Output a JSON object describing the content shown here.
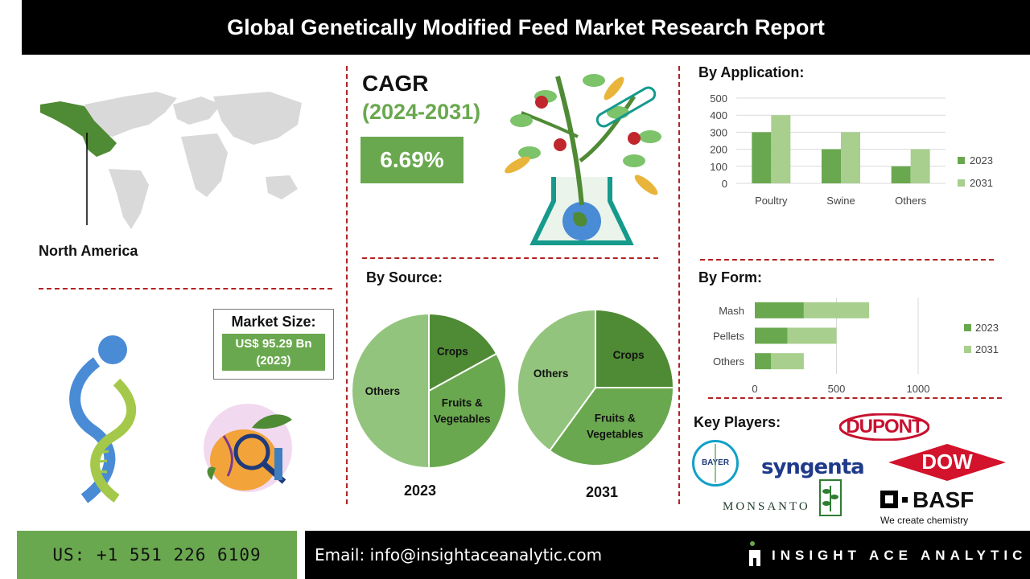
{
  "header": {
    "title": "Global Genetically Modified Feed Market Research Report"
  },
  "region": {
    "label": "North America"
  },
  "cagr": {
    "title": "CAGR",
    "years": "(2024-2031)",
    "value": "6.69%"
  },
  "market_size": {
    "title": "Market Size:",
    "value_line1": "US$ 95.29 Bn",
    "value_line2": "(2023)"
  },
  "sections": {
    "application": "By Application:",
    "source": "By Source:",
    "form": "By Form:",
    "key_players": "Key Players:"
  },
  "colors": {
    "series_2023": "#6aa84f",
    "series_2031": "#a8cf8e",
    "dark_green": "#4f8a35",
    "mid_green": "#6aa84f",
    "light_green": "#93c47d",
    "accent_red": "#b22222"
  },
  "chart_data": [
    {
      "id": "application",
      "type": "bar",
      "categories": [
        "Poultry",
        "Swine",
        "Others"
      ],
      "series": [
        {
          "name": "2023",
          "values": [
            300,
            200,
            100
          ]
        },
        {
          "name": "2031",
          "values": [
            400,
            300,
            200
          ]
        }
      ],
      "ylim": [
        0,
        500
      ],
      "yticks": [
        "0",
        "100",
        "200",
        "300",
        "400",
        "500"
      ],
      "grid": true,
      "legend": "right"
    },
    {
      "id": "source_2023",
      "type": "pie",
      "title": "2023",
      "labels": [
        "Crops",
        "Fruits & Vegetables",
        "Others"
      ],
      "label_lines": [
        [
          "Crops"
        ],
        [
          "Fruits &",
          "Vegetables"
        ],
        [
          "Others"
        ]
      ],
      "values": [
        17,
        33,
        50
      ]
    },
    {
      "id": "source_2031",
      "type": "pie",
      "title": "2031",
      "labels": [
        "Crops",
        "Fruits & Vegetables",
        "Others"
      ],
      "label_lines": [
        [
          "Crops"
        ],
        [
          "Fruits &",
          "Vegetables"
        ],
        [
          "Others"
        ]
      ],
      "values": [
        25,
        35,
        40
      ]
    },
    {
      "id": "form",
      "type": "bar",
      "orientation": "horizontal",
      "stacked": true,
      "categories": [
        "Mash",
        "Pellets",
        "Others"
      ],
      "series": [
        {
          "name": "2023",
          "values": [
            300,
            200,
            100
          ]
        },
        {
          "name": "2031",
          "values": [
            400,
            300,
            200
          ]
        }
      ],
      "xlim": [
        0,
        1000
      ],
      "xticks": [
        "0",
        "500",
        "1000"
      ],
      "legend": "right"
    }
  ],
  "key_players": {
    "dupont": "DUPONT",
    "bayer": "BAYER",
    "syngenta": "syngenta",
    "dow": "DOW",
    "monsanto": "MONSANTO",
    "basf": "BASF",
    "basf_tagline": "We create chemistry"
  },
  "footer": {
    "phone": "US: +1 551 226 6109",
    "email": "Email: info@insightaceanalytic.com",
    "brand": "INSIGHT ACE ANALYTIC"
  }
}
